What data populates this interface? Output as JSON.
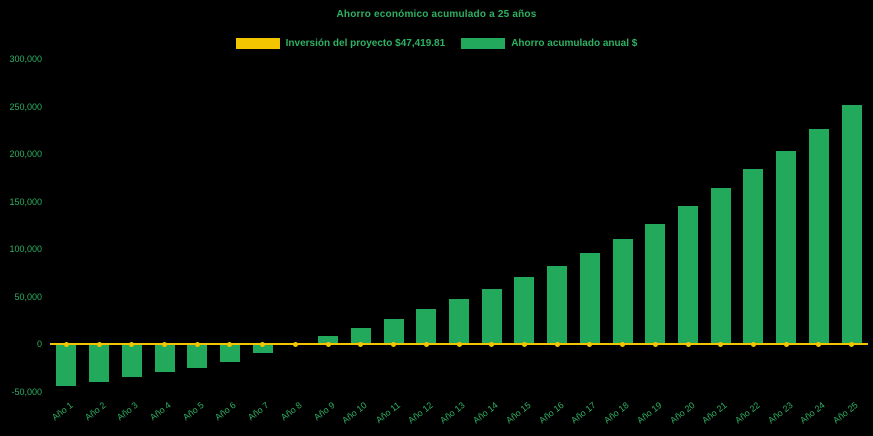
{
  "chart_data": {
    "type": "bar",
    "title": "Ahorro económico acumulado a 25 años",
    "background": "#000000",
    "text_color": "#2db263",
    "grid": false,
    "legend_position": "top",
    "ylim": [
      -50000,
      300000
    ],
    "y_ticks": [
      300000,
      250000,
      200000,
      150000,
      100000,
      50000,
      0,
      -50000
    ],
    "y_tick_labels": [
      "300,000",
      "250,000",
      "200,000",
      "150,000",
      "100,000",
      "50,000",
      "0",
      "-50,000"
    ],
    "categories": [
      "Año 1",
      "Año 2",
      "Año 3",
      "Año 4",
      "Año 5",
      "Año 6",
      "Año 7",
      "Año 8",
      "Año 9",
      "Año 10",
      "Año 11",
      "Año 12",
      "Año 13",
      "Año 14",
      "Año 15",
      "Año 16",
      "Año 17",
      "Año 18",
      "Año 19",
      "Año 20",
      "Año 21",
      "Año 22",
      "Año 23",
      "Año 24",
      "Año 25"
    ],
    "series": [
      {
        "name": "Inversión del proyecto $47,419.81",
        "type": "line",
        "color": "#f2c500",
        "constant_value": 0
      },
      {
        "name": "Ahorro acumulado anual $",
        "type": "bar",
        "color": "#23a95c",
        "values": [
          -44000,
          -39000,
          -34500,
          -29500,
          -24500,
          -18500,
          -9500,
          -1000,
          8500,
          17500,
          26500,
          37000,
          47500,
          58500,
          70500,
          82500,
          96000,
          110500,
          127000,
          145000,
          164500,
          184000,
          203500,
          226500,
          252000
        ]
      }
    ]
  }
}
